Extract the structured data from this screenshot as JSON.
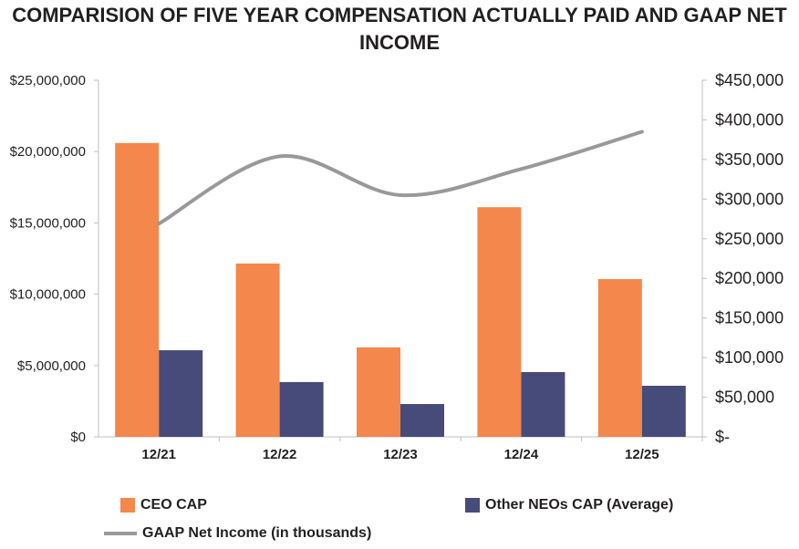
{
  "chart_data": {
    "type": "bar",
    "title": "COMPARISION OF FIVE YEAR COMPENSATION ACTUALLY PAID AND GAAP NET INCOME",
    "categories": [
      "12/21",
      "12/22",
      "12/23",
      "12/24",
      "12/25"
    ],
    "series": [
      {
        "name": "CEO CAP",
        "type": "bar",
        "axis": "left",
        "color": "#f4874b",
        "values": [
          20600000,
          12150000,
          6270000,
          16100000,
          11060000
        ]
      },
      {
        "name": "Other NEOs CAP (Average)",
        "type": "bar",
        "axis": "left",
        "color": "#474b7a",
        "values": [
          6070000,
          3840000,
          2300000,
          4540000,
          3580000
        ]
      },
      {
        "name": "GAAP Net Income (in thousands)",
        "type": "line",
        "axis": "right",
        "color": "#999999",
        "values": [
          269000,
          354000,
          305000,
          338000,
          385000
        ]
      }
    ],
    "left_axis": {
      "ylim": [
        0,
        25000000
      ],
      "ticks": [
        "$0",
        "$5,000,000",
        "$10,000,000",
        "$15,000,000",
        "$20,000,000",
        "$25,000,000"
      ]
    },
    "right_axis": {
      "ylim": [
        0,
        450000
      ],
      "ticks": [
        "$-",
        "$50,000",
        "$100,000",
        "$150,000",
        "$200,000",
        "$250,000",
        "$300,000",
        "$350,000",
        "$400,000",
        "$450,000"
      ]
    },
    "grid": false,
    "legend_position": "bottom"
  }
}
